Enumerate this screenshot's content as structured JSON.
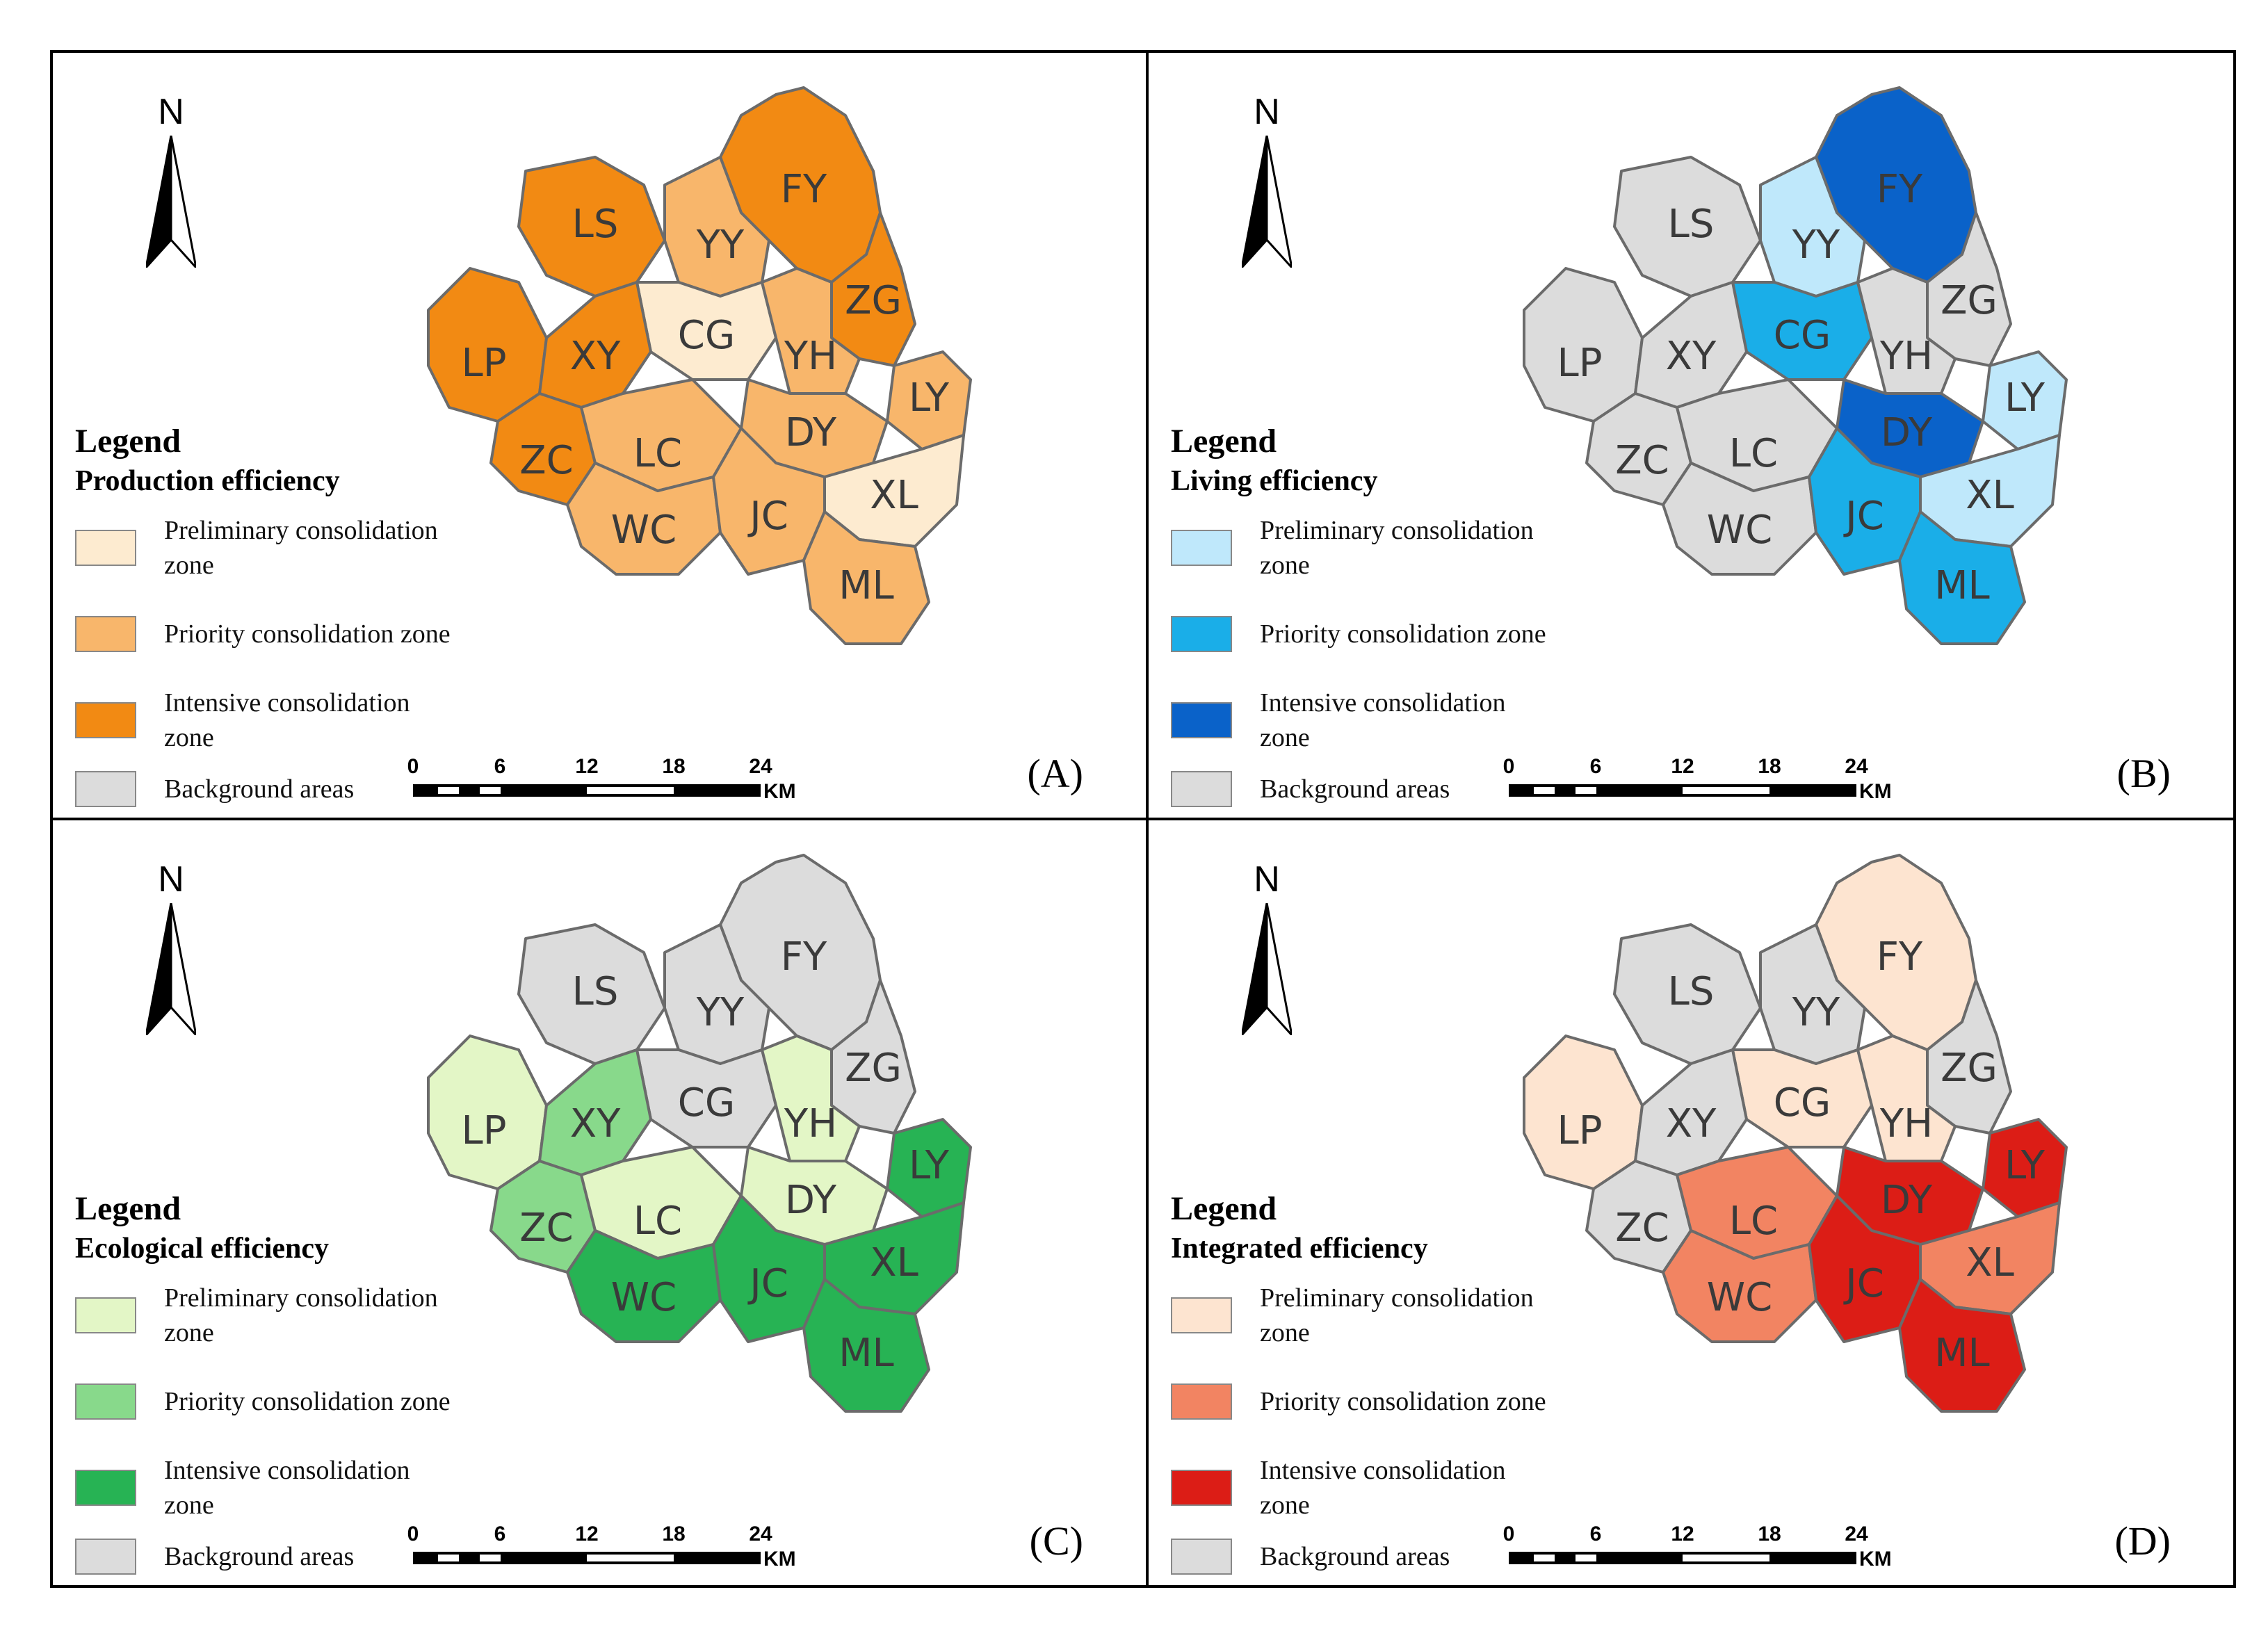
{
  "north_label": "N",
  "scale": {
    "ticks": [
      "0",
      "6",
      "12",
      "18",
      "24"
    ],
    "unit": "KM"
  },
  "towns": [
    "FY",
    "LS",
    "YY",
    "ZG",
    "CG",
    "YH",
    "LP",
    "XY",
    "LY",
    "DY",
    "ZC",
    "LC",
    "XL",
    "WC",
    "JC",
    "ML"
  ],
  "legend_title": "Legend",
  "zone_labels": {
    "preliminary": "Preliminary consolidation zone",
    "priority": "Priority consolidation zone",
    "intensive": "Intensive consolidation zone",
    "background": "Background areas"
  },
  "colors": {
    "background": "#dcdcdc",
    "boundary": "#6b6b6b"
  },
  "panels": [
    {
      "id": "A",
      "label": "(A)",
      "legend_subtitle": "Production efficiency",
      "colors": {
        "preliminary": "#fdebd0",
        "priority": "#f8b66b",
        "intensive": "#f28a13"
      },
      "zone_by_town": {
        "FY": "intensive",
        "LS": "intensive",
        "YY": "priority",
        "ZG": "intensive",
        "CG": "preliminary",
        "YH": "priority",
        "LP": "intensive",
        "XY": "intensive",
        "LY": "priority",
        "DY": "priority",
        "ZC": "intensive",
        "LC": "priority",
        "XL": "preliminary",
        "WC": "priority",
        "JC": "priority",
        "ML": "priority"
      }
    },
    {
      "id": "B",
      "label": "(B)",
      "legend_subtitle": "Living efficiency",
      "colors": {
        "preliminary": "#bfe8fb",
        "priority": "#1aaee8",
        "intensive": "#0a62c9"
      },
      "zone_by_town": {
        "FY": "intensive",
        "LS": "background",
        "YY": "preliminary",
        "ZG": "background",
        "CG": "priority",
        "YH": "background",
        "LP": "background",
        "XY": "background",
        "LY": "preliminary",
        "DY": "intensive",
        "ZC": "background",
        "LC": "background",
        "XL": "preliminary",
        "WC": "background",
        "JC": "priority",
        "ML": "priority"
      }
    },
    {
      "id": "C",
      "label": "(C)",
      "legend_subtitle": "Ecological efficiency",
      "colors": {
        "preliminary": "#e3f6c6",
        "priority": "#88d98b",
        "intensive": "#27b354"
      },
      "zone_by_town": {
        "FY": "background",
        "LS": "background",
        "YY": "background",
        "ZG": "background",
        "CG": "background",
        "YH": "preliminary",
        "LP": "preliminary",
        "XY": "priority",
        "LY": "intensive",
        "DY": "preliminary",
        "ZC": "priority",
        "LC": "preliminary",
        "XL": "intensive",
        "WC": "intensive",
        "JC": "intensive",
        "ML": "intensive"
      }
    },
    {
      "id": "D",
      "label": "(D)",
      "legend_subtitle": "Integrated efficiency",
      "colors": {
        "preliminary": "#fde4d0",
        "priority": "#f28462",
        "intensive": "#dc1d16"
      },
      "zone_by_town": {
        "FY": "preliminary",
        "LS": "background",
        "YY": "background",
        "ZG": "background",
        "CG": "preliminary",
        "YH": "preliminary",
        "LP": "preliminary",
        "XY": "background",
        "LY": "intensive",
        "DY": "intensive",
        "ZC": "background",
        "LC": "priority",
        "XL": "priority",
        "WC": "priority",
        "JC": "intensive",
        "ML": "intensive"
      }
    }
  ]
}
